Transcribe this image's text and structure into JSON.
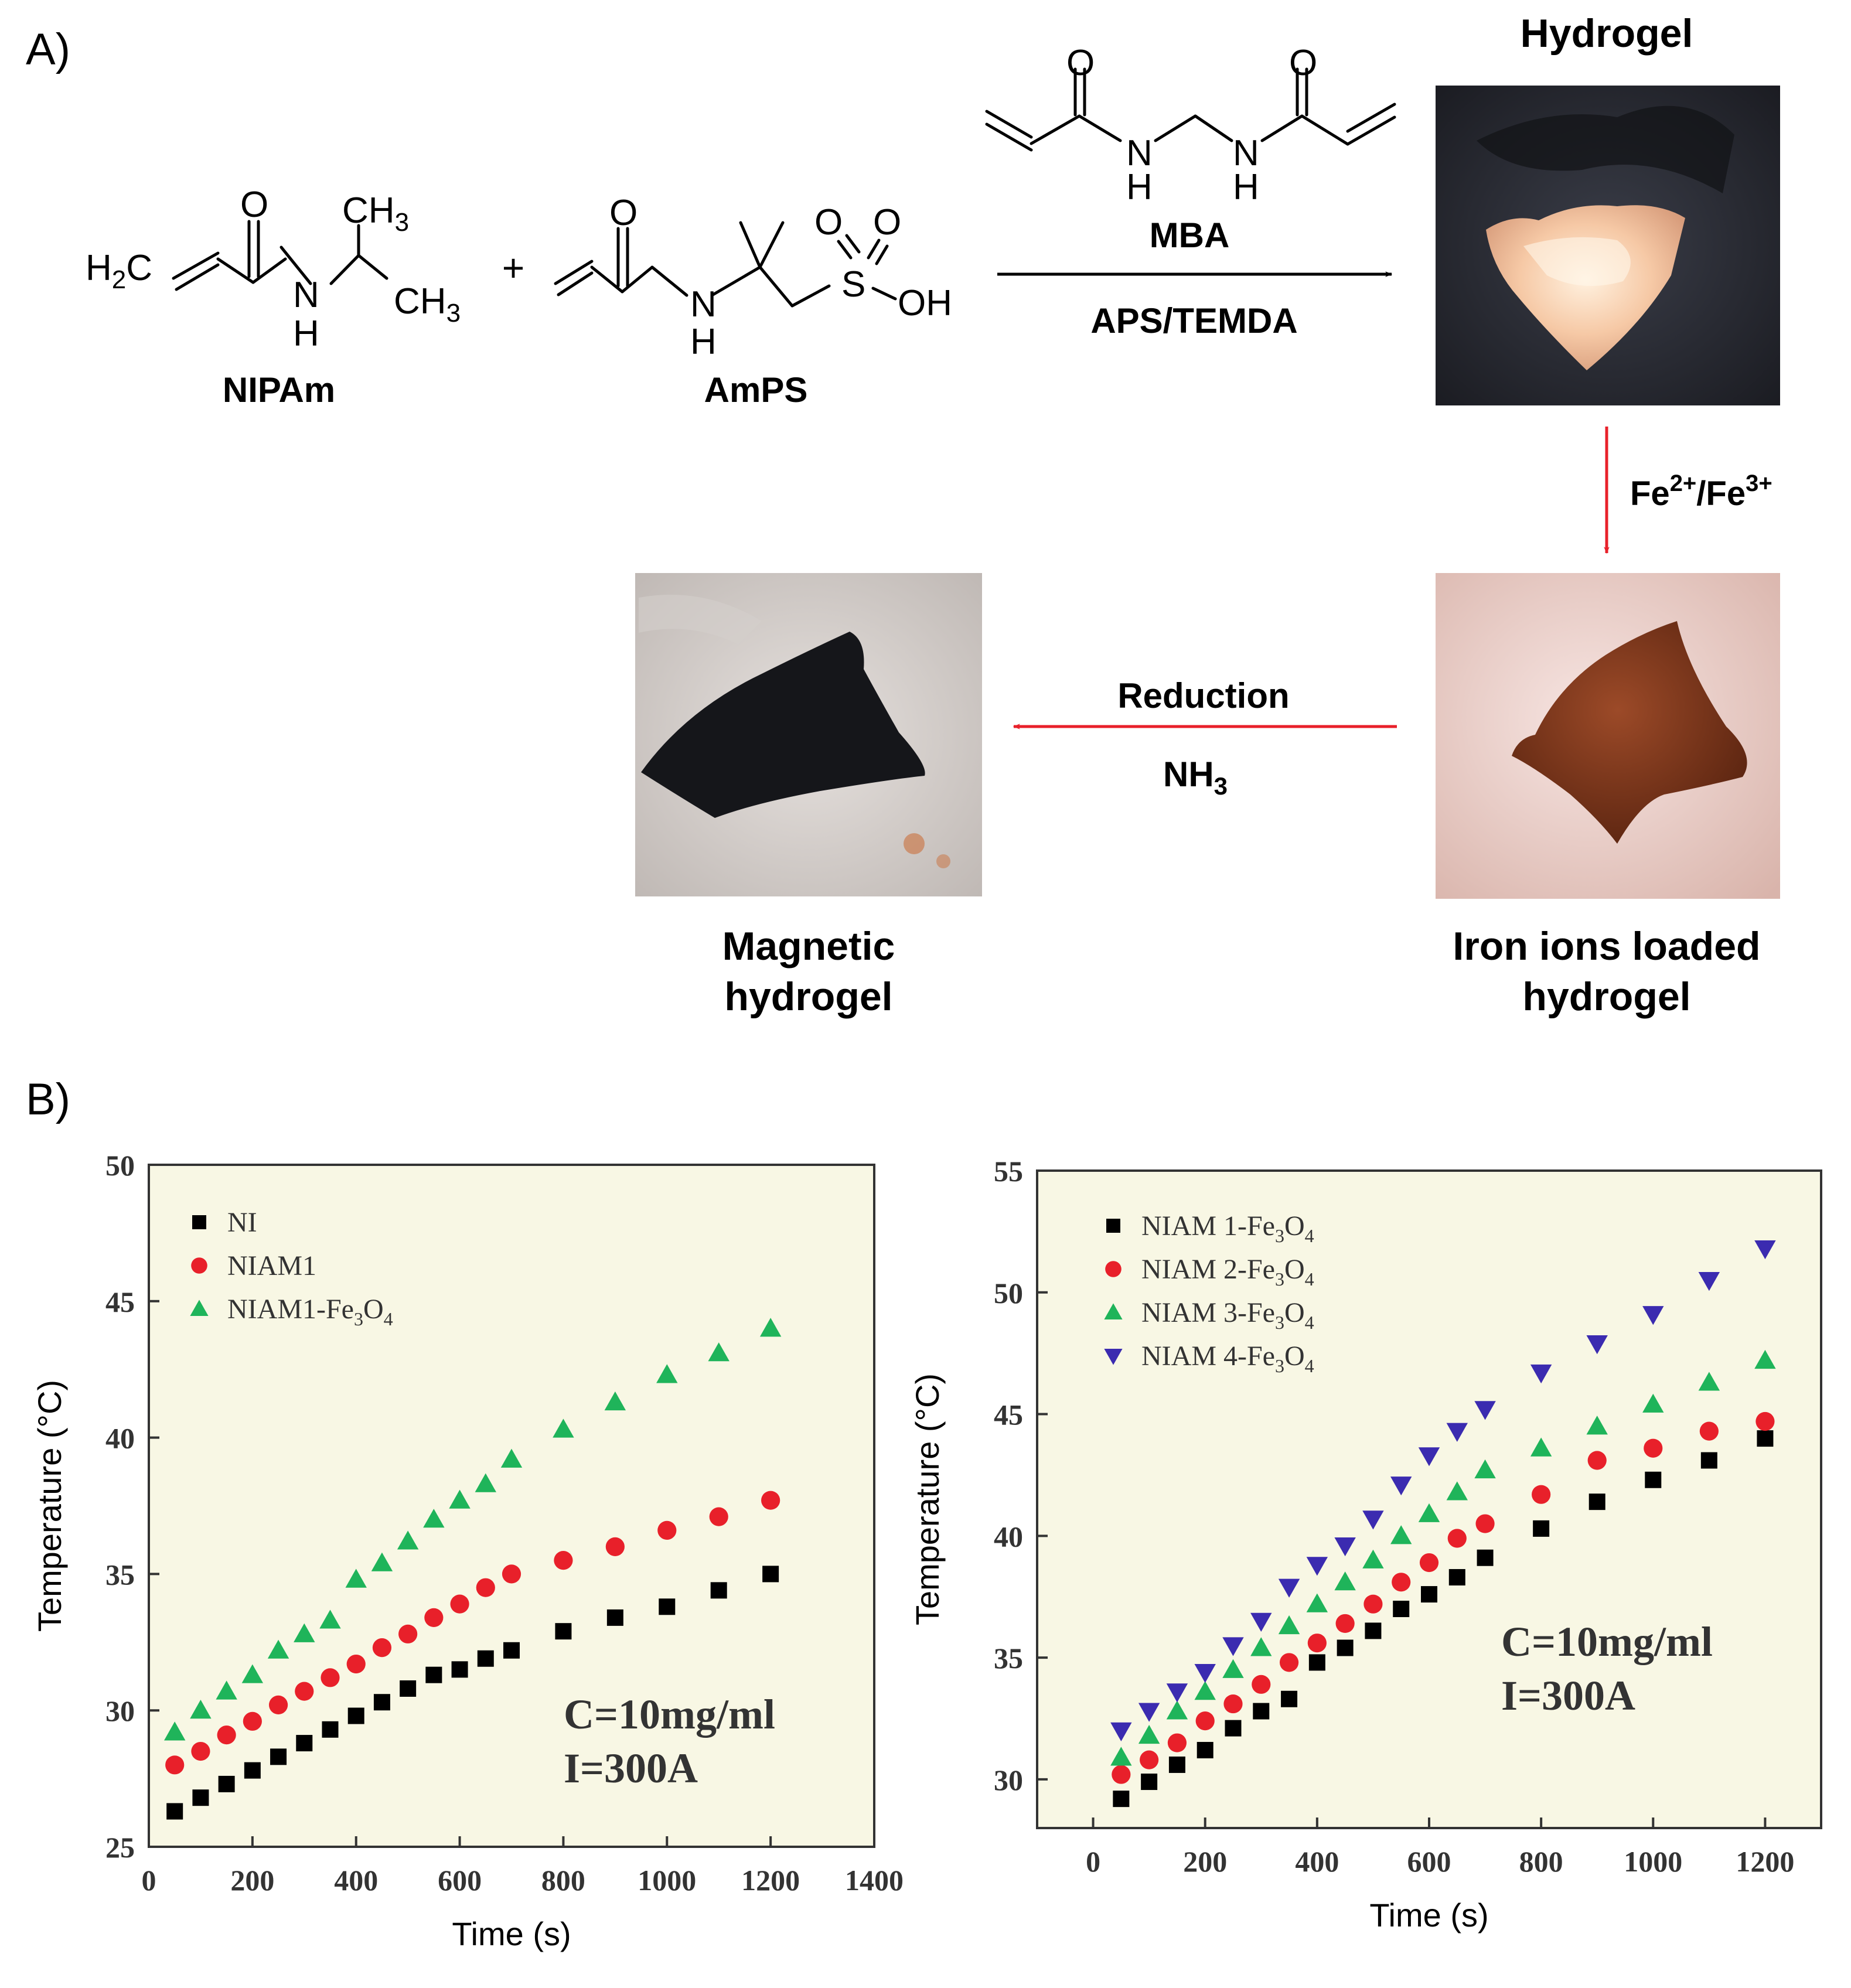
{
  "panel_a": {
    "label": "A)",
    "reactants": {
      "nipam": {
        "name": "NIPAm",
        "O": "O",
        "NH": "N",
        "H": "H",
        "ch3_top": "CH",
        "ch3_top_sub": "3",
        "ch3_right": "CH",
        "ch3_right_sub": "3",
        "h2c": "H",
        "h2c_sub": "2",
        "h2c_tail": "C"
      },
      "plus": "+",
      "amps": {
        "name": "AmPS",
        "O": "O",
        "NH": "N",
        "H": "H",
        "S": "S",
        "O1": "O",
        "O2": "O",
        "OH": "OH"
      }
    },
    "mba": {
      "name": "MBA",
      "O1": "O",
      "O2": "O",
      "N1": "N",
      "H1": "H",
      "N2": "N",
      "H2": "H"
    },
    "conditions": "APS/TEMDA",
    "hydrogel_label": "Hydrogel",
    "fe_label": {
      "fe1": "Fe",
      "sup1": "2+",
      "sep": "/",
      "fe2": "Fe",
      "sup2": "3+"
    },
    "iron_label": [
      "Iron ions loaded",
      "hydrogel"
    ],
    "reduction_label": "Reduction",
    "nh3": {
      "main": "NH",
      "sub": "3"
    },
    "magnetic_label": [
      "Magnetic",
      "hydrogel"
    ],
    "arrow_colors": {
      "black": "#000000",
      "red": "#e8202a"
    }
  },
  "panel_b": {
    "label": "B)"
  },
  "chart_data": [
    {
      "type": "scatter",
      "xlabel": "Time (s)",
      "ylabel": "Temperature (°C)",
      "xlim": [
        0,
        1400
      ],
      "ylim": [
        25,
        50
      ],
      "xticks": [
        0,
        200,
        400,
        600,
        800,
        1000,
        1200,
        1400
      ],
      "yticks": [
        25,
        30,
        35,
        40,
        45,
        50
      ],
      "legend_position": "top-left",
      "annotation": [
        "C=10mg/ml",
        "I=300A"
      ],
      "x": [
        50,
        100,
        150,
        200,
        250,
        300,
        350,
        400,
        450,
        500,
        550,
        600,
        650,
        700,
        800,
        900,
        1000,
        1100,
        1200
      ],
      "series": [
        {
          "name": "NI",
          "marker": "square",
          "color": "#000000",
          "values": [
            26.3,
            26.8,
            27.3,
            27.8,
            28.3,
            28.8,
            29.3,
            29.8,
            30.3,
            30.8,
            31.3,
            31.5,
            31.9,
            32.2,
            32.9,
            33.4,
            33.8,
            34.4,
            35.0
          ]
        },
        {
          "name": "NIAM1",
          "marker": "circle",
          "color": "#e8202a",
          "values": [
            28.0,
            28.5,
            29.1,
            29.6,
            30.2,
            30.7,
            31.2,
            31.7,
            32.3,
            32.8,
            33.4,
            33.9,
            34.5,
            35.0,
            35.5,
            36.0,
            36.6,
            37.1,
            37.7
          ]
        },
        {
          "name": "NIAM1-Fe3O4",
          "name_parts": [
            "NIAM1-Fe",
            "3",
            "O",
            "4"
          ],
          "marker": "triangle-up",
          "color": "#1fb45a",
          "values": [
            29.2,
            30.0,
            30.7,
            31.3,
            32.2,
            32.8,
            33.3,
            34.8,
            35.4,
            36.2,
            37.0,
            37.7,
            38.3,
            39.2,
            40.3,
            41.3,
            42.3,
            43.1,
            44.0
          ]
        }
      ]
    },
    {
      "type": "scatter",
      "xlabel": "Time (s)",
      "ylabel": "Temperature (°C)",
      "xlim": [
        -100,
        1300
      ],
      "ylim": [
        28,
        55
      ],
      "xticks": [
        0,
        200,
        400,
        600,
        800,
        1000,
        1200
      ],
      "yticks": [
        30,
        35,
        40,
        45,
        50,
        55
      ],
      "legend_position": "top-left",
      "annotation": [
        "C=10mg/ml",
        "I=300A"
      ],
      "x": [
        50,
        100,
        150,
        200,
        250,
        300,
        350,
        400,
        450,
        500,
        550,
        600,
        650,
        700,
        800,
        900,
        1000,
        1100,
        1200
      ],
      "series": [
        {
          "name": "NIAM 1-Fe3O4",
          "name_parts": [
            "NIAM 1-Fe",
            "3",
            "O",
            "4"
          ],
          "marker": "square",
          "color": "#000000",
          "values": [
            29.2,
            29.9,
            30.6,
            31.2,
            32.1,
            32.8,
            33.3,
            34.8,
            35.4,
            36.1,
            37.0,
            37.6,
            38.3,
            39.1,
            40.3,
            41.4,
            42.3,
            43.1,
            44.0
          ]
        },
        {
          "name": "NIAM 2-Fe3O4",
          "name_parts": [
            "NIAM 2-Fe",
            "3",
            "O",
            "4"
          ],
          "marker": "circle",
          "color": "#e8202a",
          "values": [
            30.2,
            30.8,
            31.5,
            32.4,
            33.1,
            33.9,
            34.8,
            35.6,
            36.4,
            37.2,
            38.1,
            38.9,
            39.9,
            40.5,
            41.7,
            43.1,
            43.6,
            44.3,
            44.7
          ]
        },
        {
          "name": "NIAM 3-Fe3O4",
          "name_parts": [
            "NIAM 3-Fe",
            "3",
            "O",
            "4"
          ],
          "marker": "triangle-up",
          "color": "#1fb45a",
          "values": [
            30.9,
            31.8,
            32.8,
            33.6,
            34.5,
            35.4,
            36.3,
            37.2,
            38.1,
            39.0,
            40.0,
            40.9,
            41.8,
            42.7,
            43.6,
            44.5,
            45.4,
            46.3,
            47.2
          ]
        },
        {
          "name": "NIAM 4-Fe3O4",
          "name_parts": [
            "NIAM 4-Fe",
            "3",
            "O",
            "4"
          ],
          "marker": "triangle-down",
          "color": "#3b2bb0",
          "values": [
            32.0,
            32.8,
            33.6,
            34.4,
            35.5,
            36.5,
            37.9,
            38.8,
            39.6,
            40.7,
            42.1,
            43.3,
            44.3,
            45.2,
            46.7,
            47.9,
            49.1,
            50.5,
            51.8
          ]
        }
      ]
    }
  ]
}
